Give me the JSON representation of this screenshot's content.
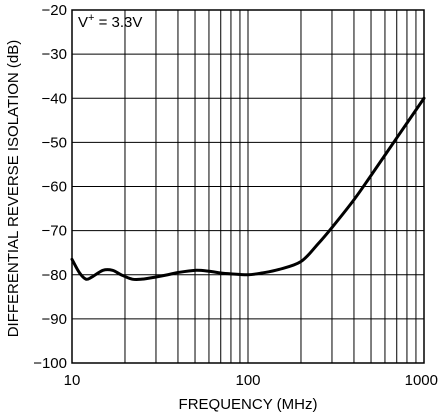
{
  "chart_data": {
    "type": "line",
    "xlabel": "FREQUENCY (MHz)",
    "ylabel": "DIFFERENTIAL REVERSE ISOLATION (dB)",
    "x_scale": "log",
    "xlim": [
      10,
      1000
    ],
    "ylim": [
      -100,
      -20
    ],
    "x_ticks": [
      {
        "value": 10,
        "label": "10"
      },
      {
        "value": 100,
        "label": "100"
      },
      {
        "value": 1000,
        "label": "1000"
      }
    ],
    "y_ticks": [
      {
        "value": -20,
        "label": "−20"
      },
      {
        "value": -30,
        "label": "−30"
      },
      {
        "value": -40,
        "label": "−40"
      },
      {
        "value": -50,
        "label": "−50"
      },
      {
        "value": -60,
        "label": "−60"
      },
      {
        "value": -70,
        "label": "−70"
      },
      {
        "value": -80,
        "label": "−80"
      },
      {
        "value": -90,
        "label": "−90"
      },
      {
        "value": -100,
        "label": "−100"
      }
    ],
    "grid": true,
    "annotation": {
      "base": "V",
      "sup": "+",
      "rest": " = 3.3V"
    },
    "series": [
      {
        "color": "#000000",
        "x": [
          10,
          11,
          12,
          13,
          15,
          17,
          19,
          22,
          25,
          30,
          35,
          40,
          50,
          60,
          70,
          80,
          100,
          120,
          150,
          200,
          250,
          300,
          400,
          500,
          700,
          1000
        ],
        "y": [
          -76.5,
          -79.5,
          -81,
          -80.5,
          -79,
          -79,
          -80,
          -81,
          -81,
          -80.5,
          -80,
          -79.5,
          -79,
          -79.2,
          -79.6,
          -79.8,
          -80,
          -79.6,
          -78.8,
          -77,
          -73,
          -69.3,
          -63,
          -57.5,
          -49,
          -40
        ]
      }
    ]
  }
}
